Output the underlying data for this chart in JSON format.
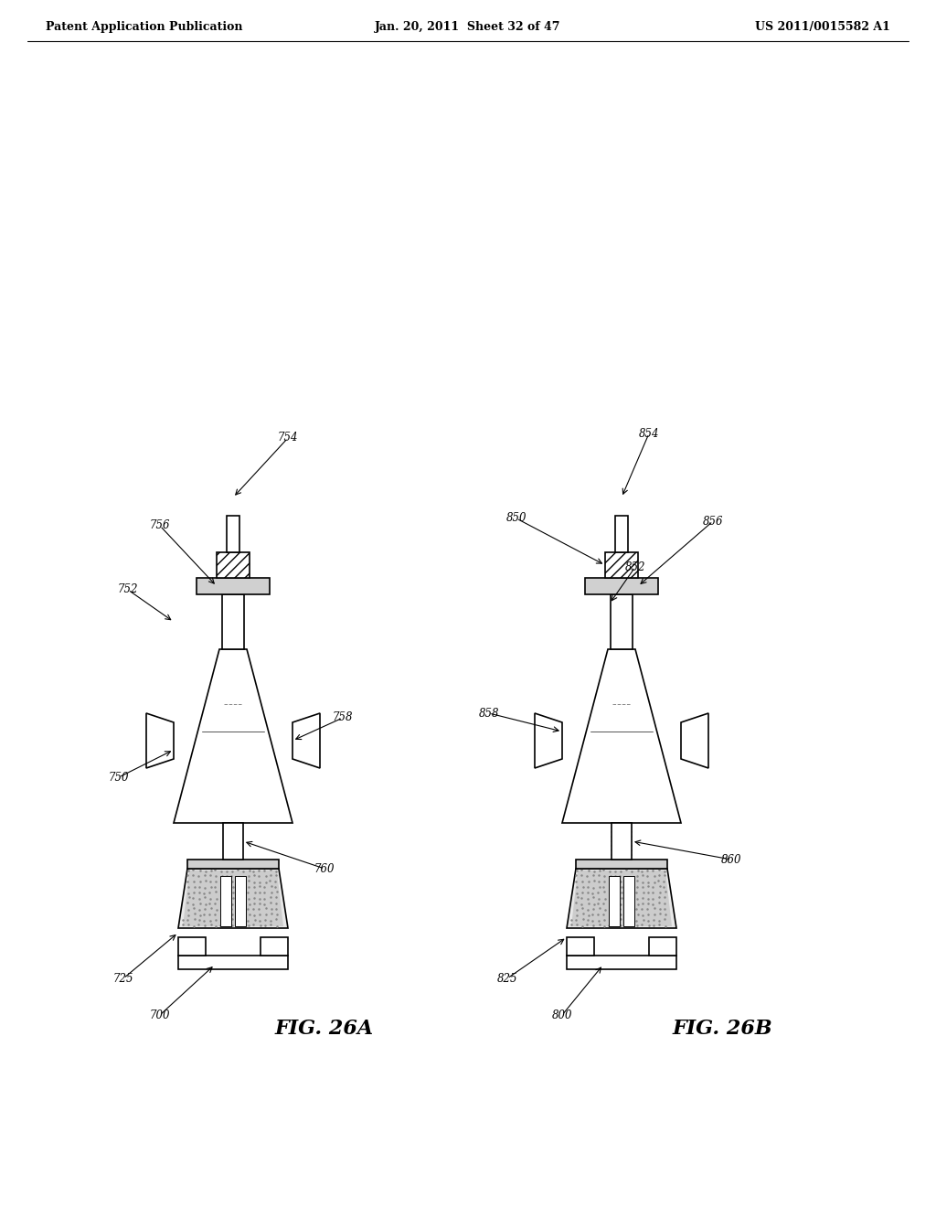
{
  "bg_color": "#ffffff",
  "header_left": "Patent Application Publication",
  "header_mid": "Jan. 20, 2011  Sheet 32 of 47",
  "header_right": "US 2011/0015582 A1",
  "fig_label_left": "FIG. 26A",
  "fig_label_right": "FIG. 26B",
  "ref_numbers_left": [
    "754",
    "756",
    "752",
    "758",
    "750",
    "760",
    "725",
    "700"
  ],
  "ref_numbers_right": [
    "854",
    "856",
    "852",
    "850",
    "858",
    "860",
    "825",
    "800"
  ],
  "line_color": "#000000",
  "fill_light": "#d8d8d8",
  "fill_medium": "#b0b0b0",
  "fill_dark": "#888888",
  "hatch_color": "#555555"
}
